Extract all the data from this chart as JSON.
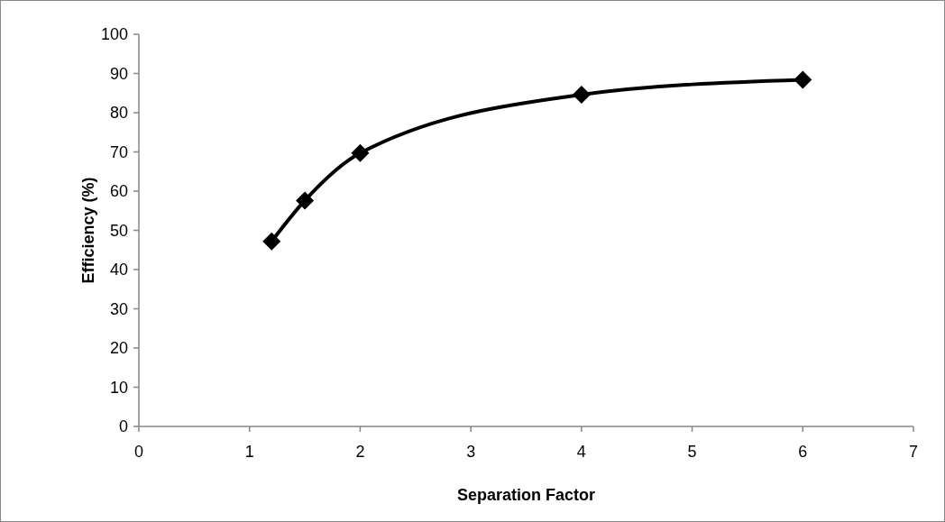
{
  "chart_data": {
    "type": "line",
    "xlabel": "Separation Factor",
    "ylabel": "Efficiency (%)",
    "x": [
      1.2,
      1.5,
      2,
      4,
      6
    ],
    "series": [
      {
        "color": "#000000",
        "values": [
          47.2,
          57.6,
          69.7,
          84.6,
          88.4
        ]
      }
    ],
    "xlim": [
      0,
      7
    ],
    "xticks": [
      0,
      1,
      2,
      3,
      4,
      5,
      6,
      7
    ],
    "ylim": [
      0,
      100
    ],
    "yticks": [
      0,
      10,
      20,
      30,
      40,
      50,
      60,
      70,
      80,
      90,
      100
    ],
    "grid": false,
    "marker": "diamond",
    "line_style": "solid"
  }
}
